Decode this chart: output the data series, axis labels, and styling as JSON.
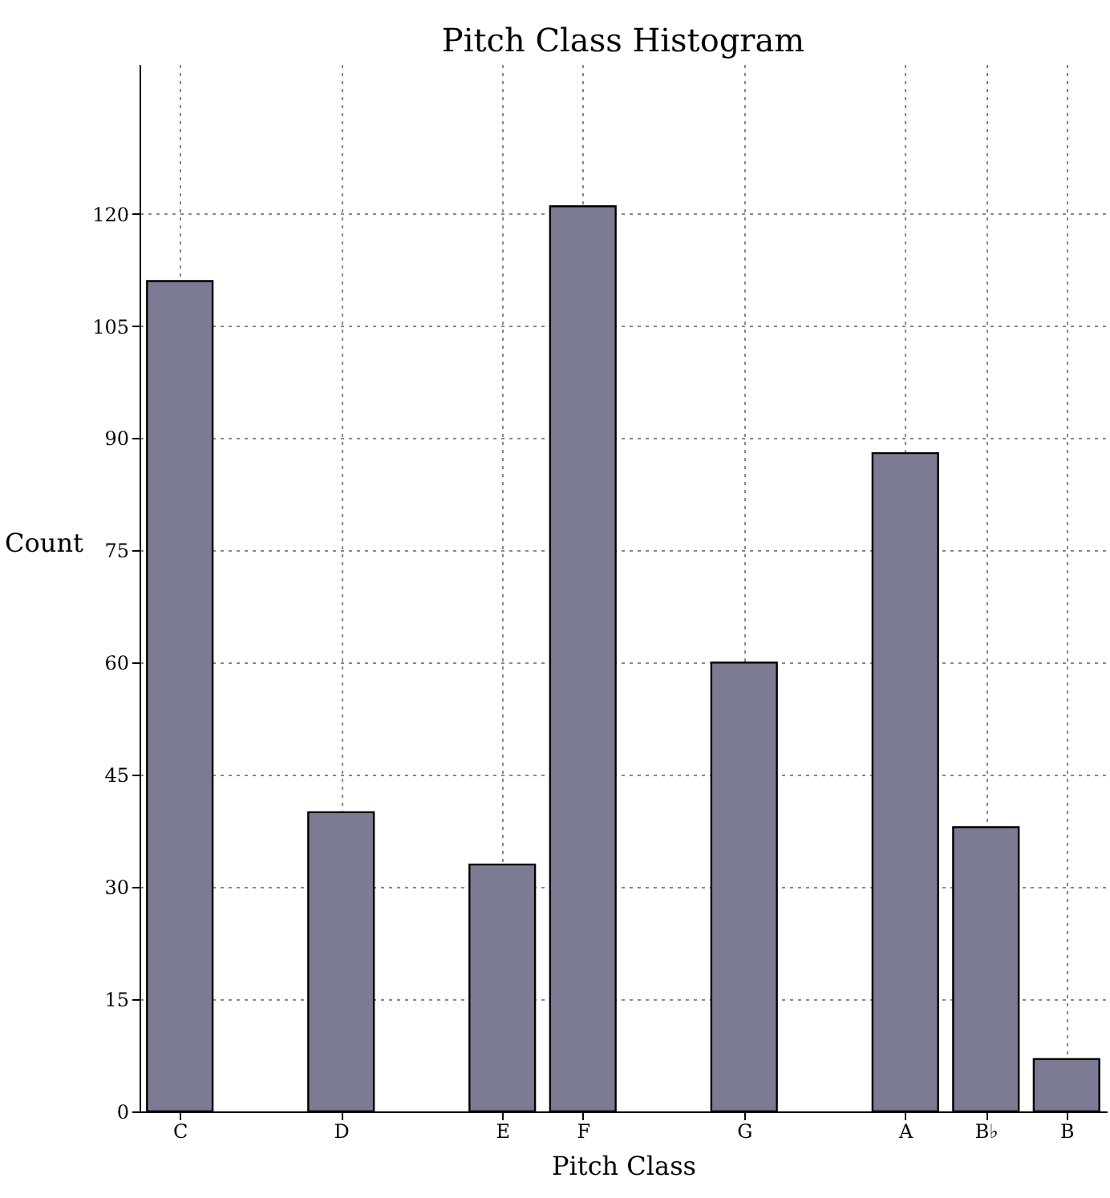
{
  "chart_data": {
    "type": "bar",
    "title": "Pitch Class Histogram",
    "xlabel": "Pitch Class",
    "ylabel": "Count",
    "categories": [
      "C",
      null,
      "D",
      null,
      "E",
      "F",
      null,
      "G",
      null,
      "A",
      "B♭",
      "B"
    ],
    "values": [
      111,
      null,
      40,
      null,
      33,
      121,
      null,
      60,
      null,
      88,
      38,
      7
    ],
    "color": "#7b7b93",
    "ylim": [
      0,
      140
    ],
    "yticks": [
      0,
      15,
      30,
      45,
      60,
      75,
      90,
      105,
      120
    ],
    "grid": true
  }
}
